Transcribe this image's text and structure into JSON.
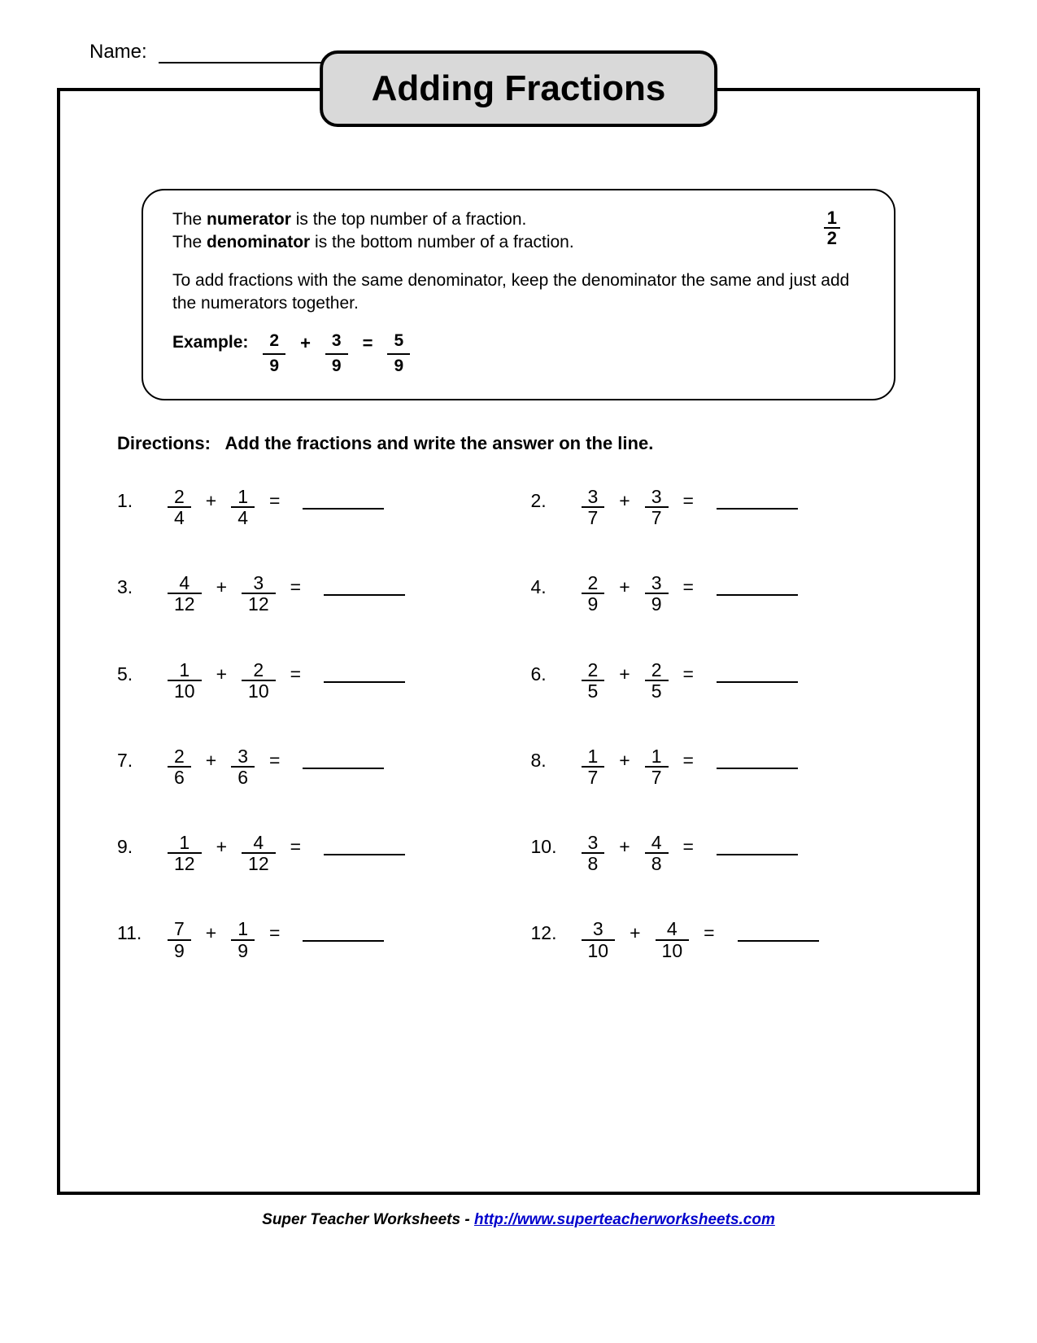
{
  "name_label": "Name:",
  "title": "Adding Fractions",
  "info": {
    "line1_pre": "The ",
    "line1_bold": "numerator",
    "line1_post": " is the top number of a fraction.",
    "line2_pre": "The ",
    "line2_bold": "denominator",
    "line2_post": " is the bottom number of a fraction.",
    "sample_frac": {
      "num": "1",
      "den": "2"
    },
    "rule": "To add fractions with the same denominator, keep the denominator the same and just add the numerators together.",
    "example_label": "Example:",
    "example": {
      "a": {
        "num": "2",
        "den": "9"
      },
      "plus": "+",
      "b": {
        "num": "3",
        "den": "9"
      },
      "equals": "=",
      "ans": {
        "num": "5",
        "den": "9"
      }
    }
  },
  "directions_label": "Directions:",
  "directions_text": "Add the fractions and write the answer on the line.",
  "plus": "+",
  "equals": "=",
  "problems": [
    {
      "n": "1.",
      "a": {
        "num": "2",
        "den": "4"
      },
      "b": {
        "num": "1",
        "den": "4"
      }
    },
    {
      "n": "2.",
      "a": {
        "num": "3",
        "den": "7"
      },
      "b": {
        "num": "3",
        "den": "7"
      }
    },
    {
      "n": "3.",
      "a": {
        "num": "4",
        "den": "12"
      },
      "b": {
        "num": "3",
        "den": "12"
      }
    },
    {
      "n": "4.",
      "a": {
        "num": "2",
        "den": "9"
      },
      "b": {
        "num": "3",
        "den": "9"
      }
    },
    {
      "n": "5.",
      "a": {
        "num": "1",
        "den": "10"
      },
      "b": {
        "num": "2",
        "den": "10"
      }
    },
    {
      "n": "6.",
      "a": {
        "num": "2",
        "den": "5"
      },
      "b": {
        "num": "2",
        "den": "5"
      }
    },
    {
      "n": "7.",
      "a": {
        "num": "2",
        "den": "6"
      },
      "b": {
        "num": "3",
        "den": "6"
      }
    },
    {
      "n": "8.",
      "a": {
        "num": "1",
        "den": "7"
      },
      "b": {
        "num": "1",
        "den": "7"
      }
    },
    {
      "n": "9.",
      "a": {
        "num": "1",
        "den": "12"
      },
      "b": {
        "num": "4",
        "den": "12"
      }
    },
    {
      "n": "10.",
      "a": {
        "num": "3",
        "den": "8"
      },
      "b": {
        "num": "4",
        "den": "8"
      }
    },
    {
      "n": "11.",
      "a": {
        "num": "7",
        "den": "9"
      },
      "b": {
        "num": "1",
        "den": "9"
      }
    },
    {
      "n": "12.",
      "a": {
        "num": "3",
        "den": "10"
      },
      "b": {
        "num": "4",
        "den": "10"
      }
    }
  ],
  "footer": {
    "brand": "Super Teacher Worksheets",
    "sep": "  -  ",
    "url": "http://www.superteacherworksheets.com"
  }
}
